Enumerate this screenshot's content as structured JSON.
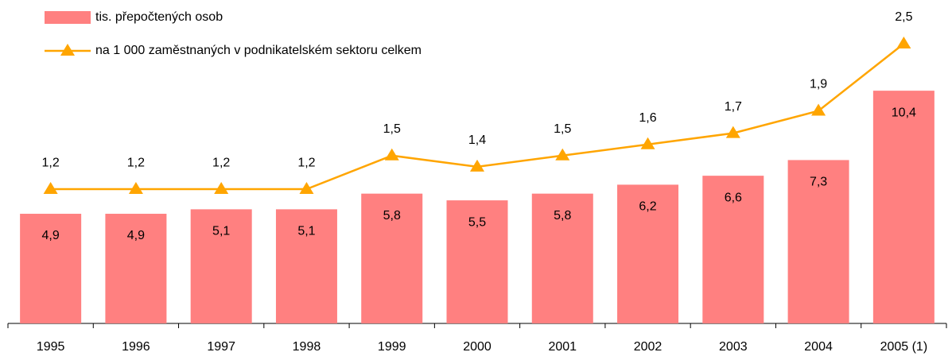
{
  "chart_data": {
    "type": "bar-line",
    "categories": [
      "1995",
      "1996",
      "1997",
      "1998",
      "1999",
      "2000",
      "2001",
      "2002",
      "2003",
      "2004",
      "2005 (1)"
    ],
    "series": [
      {
        "name": "tis. přepočtených osob",
        "type": "bar",
        "color": "#ff8080",
        "values": [
          4.9,
          4.9,
          5.1,
          5.1,
          5.8,
          5.5,
          5.8,
          6.2,
          6.6,
          7.3,
          10.4
        ],
        "value_labels": [
          "4,9",
          "4,9",
          "5,1",
          "5,1",
          "5,8",
          "5,5",
          "5,8",
          "6,2",
          "6,6",
          "7,3",
          "10,4"
        ]
      },
      {
        "name": "na 1 000 zaměstnaných v podnikatelském sektoru celkem",
        "type": "line",
        "color": "#ffa500",
        "axis": "y2",
        "values": [
          1.2,
          1.2,
          1.2,
          1.2,
          1.5,
          1.4,
          1.5,
          1.6,
          1.7,
          1.9,
          2.5
        ],
        "value_labels": [
          "1,2",
          "1,2",
          "1,2",
          "1,2",
          "1,5",
          "1,4",
          "1,5",
          "1,6",
          "1,7",
          "1,9",
          "2,5"
        ]
      }
    ],
    "ylim": [
      0,
      12.5
    ],
    "y2lim": [
      0,
      2.5
    ],
    "legend": "top-left"
  }
}
